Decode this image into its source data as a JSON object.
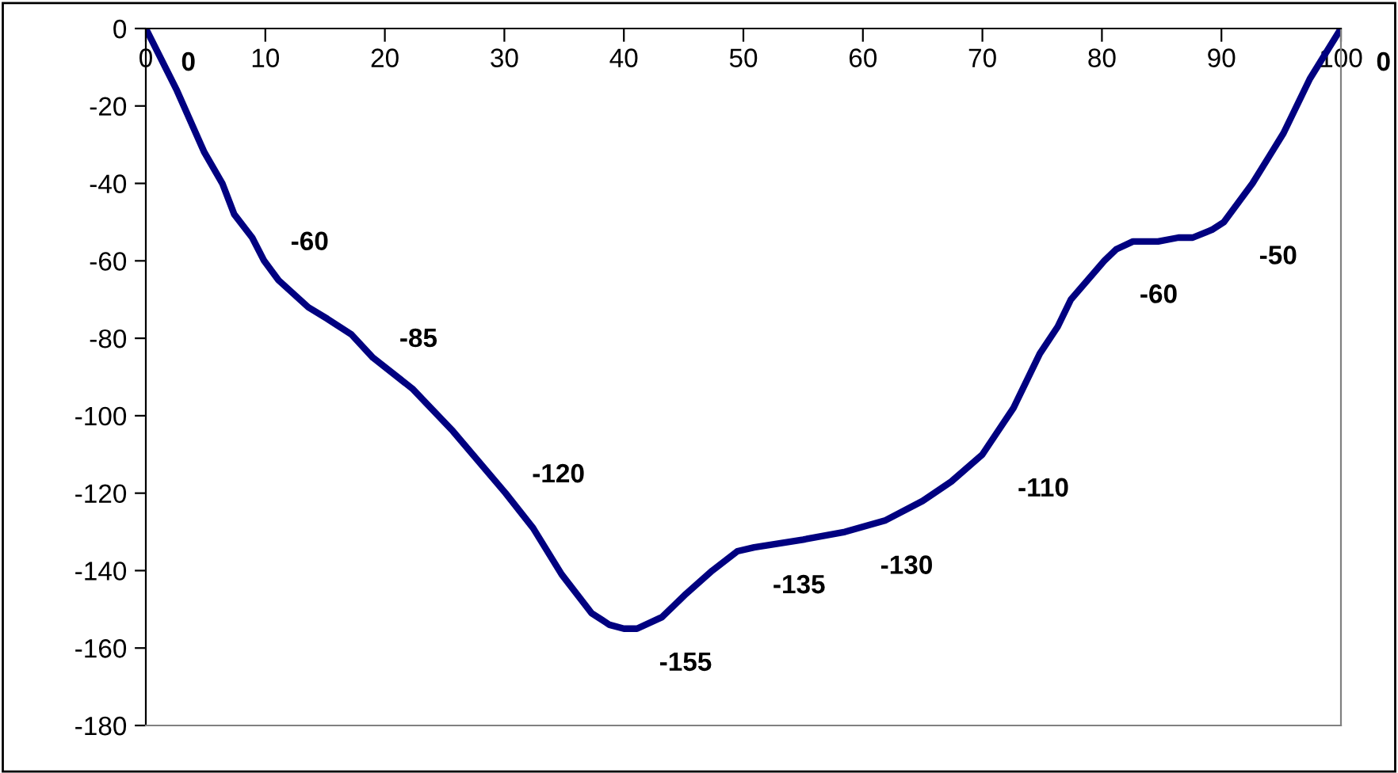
{
  "chart_data": {
    "type": "line",
    "series": [
      {
        "color": "#000080",
        "x": [
          0,
          2.6,
          4.9,
          6.4,
          7.4,
          8.9,
          9.9,
          11.1,
          13.6,
          15.2,
          17.2,
          19.0,
          22.3,
          25.7,
          30.1,
          32.4,
          34.8,
          37.3,
          38.8,
          40.0,
          41.1,
          43.2,
          45.2,
          47.4,
          49.5,
          50.9,
          55.0,
          58.5,
          61.9,
          65.0,
          67.4,
          70.0,
          72.6,
          74.8,
          76.3,
          77.4,
          80.2,
          81.2,
          82.6,
          84.7,
          86.4,
          87.6,
          89.2,
          90.2,
          92.6,
          94.0,
          95.2,
          97.4,
          100
        ],
        "values": [
          0,
          -16,
          -32,
          -40,
          -48,
          -54,
          -60,
          -65,
          -72,
          -75,
          -79,
          -85,
          -93,
          -104,
          -120,
          -129,
          -141,
          -151,
          -154,
          -155,
          -155,
          -152,
          -146,
          -140,
          -135,
          -134,
          -132,
          -130,
          -127,
          -122,
          -117,
          -110,
          -98,
          -84,
          -77,
          -70,
          -60,
          -57,
          -55,
          -55,
          -54,
          -54,
          -52,
          -50,
          -40,
          -33,
          -27,
          -13,
          0
        ],
        "value_labels": [
          "0",
          null,
          null,
          null,
          null,
          null,
          "-60",
          null,
          null,
          null,
          null,
          "-85",
          null,
          null,
          "-120",
          null,
          null,
          null,
          null,
          "-155",
          null,
          null,
          null,
          null,
          "-135",
          null,
          null,
          "-130",
          null,
          null,
          null,
          "-110",
          null,
          null,
          null,
          null,
          "-60",
          null,
          null,
          null,
          null,
          null,
          null,
          "-50",
          null,
          null,
          null,
          null,
          "0"
        ]
      }
    ],
    "xlim": [
      0,
      100
    ],
    "xticks": [
      0,
      10,
      20,
      30,
      40,
      50,
      60,
      70,
      80,
      90,
      100
    ],
    "ylim": [
      -180,
      0
    ],
    "yticks": [
      -180,
      -160,
      -140,
      -120,
      -100,
      -80,
      -60,
      -40,
      -20,
      0
    ],
    "grid": false,
    "marker": "none",
    "line_style": "solid"
  }
}
